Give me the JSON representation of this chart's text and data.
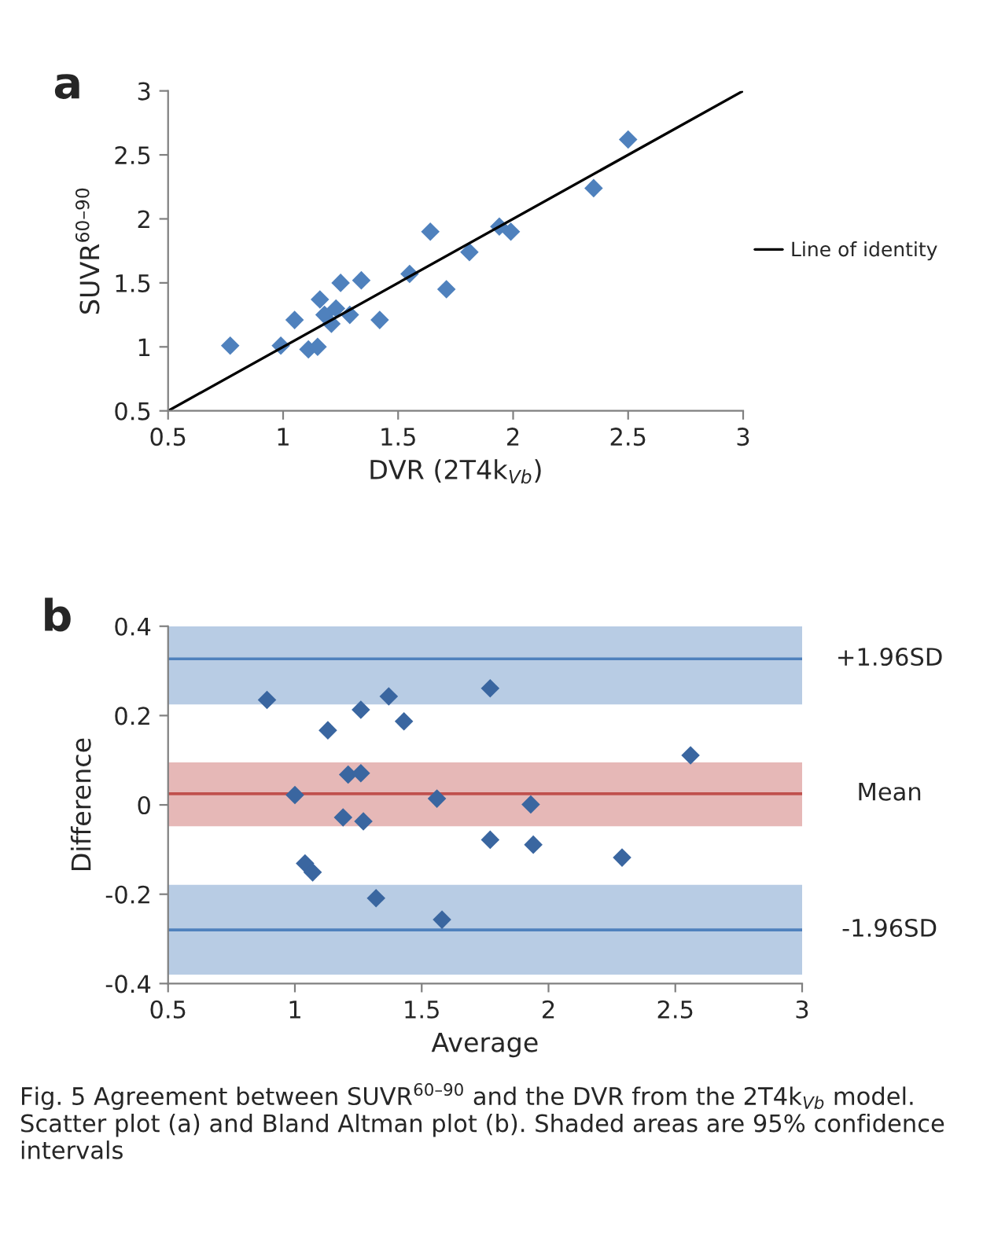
{
  "chart_data": [
    {
      "type": "scatter",
      "title": "a",
      "xlabel": "DVR (2T4k$_{Vb}$)",
      "ylabel": "SUVR$^{60–90}$",
      "xlim": [
        0.5,
        3
      ],
      "ylim": [
        0.5,
        3
      ],
      "xticks": [
        0.5,
        1,
        1.5,
        2,
        2.5,
        3
      ],
      "yticks": [
        0.5,
        1,
        1.5,
        2,
        2.5,
        3
      ],
      "grid": false,
      "legend": "right",
      "series": [
        {
          "marker": "diamond",
          "color": "#4f81bd",
          "x": [
            0.77,
            0.99,
            1.05,
            1.11,
            1.15,
            1.16,
            1.18,
            1.21,
            1.23,
            1.25,
            1.29,
            1.34,
            1.42,
            1.55,
            1.64,
            1.71,
            1.81,
            1.94,
            1.99,
            2.35,
            2.5
          ],
          "values": [
            1.01,
            1.01,
            1.21,
            0.98,
            1.0,
            1.37,
            1.25,
            1.18,
            1.3,
            1.5,
            1.25,
            1.52,
            1.21,
            1.57,
            1.9,
            1.45,
            1.74,
            1.94,
            1.9,
            2.24,
            2.62
          ]
        },
        {
          "type": "line",
          "name": "Line of identity",
          "color": "#000000",
          "x": [
            0.5,
            3
          ],
          "values": [
            0.5,
            3
          ]
        }
      ]
    },
    {
      "type": "scatter",
      "title": "b",
      "xlabel": "Average",
      "ylabel": "Difference",
      "xlim": [
        0.5,
        3
      ],
      "ylim": [
        -0.4,
        0.4
      ],
      "xticks": [
        0.5,
        1,
        1.5,
        2,
        2.5,
        3
      ],
      "yticks": [
        -0.4,
        -0.2,
        0,
        0.2,
        0.4
      ],
      "grid": false,
      "marker": "diamond",
      "series": [
        {
          "color": "#3a66a0",
          "x": [
            0.89,
            1.0,
            1.04,
            1.07,
            1.13,
            1.19,
            1.21,
            1.26,
            1.26,
            1.27,
            1.32,
            1.37,
            1.43,
            1.56,
            1.58,
            1.77,
            1.77,
            1.93,
            1.94,
            2.29,
            2.56
          ],
          "values": [
            0.235,
            0.022,
            -0.131,
            -0.151,
            0.167,
            -0.028,
            0.068,
            0.071,
            0.213,
            -0.037,
            -0.209,
            0.243,
            0.187,
            0.014,
            -0.257,
            0.261,
            -0.078,
            0.001,
            -0.089,
            -0.118,
            0.111
          ]
        }
      ],
      "bands": [
        {
          "axis": "y",
          "from": 0.225,
          "to": 0.4,
          "color": "#b8cce4"
        },
        {
          "axis": "y",
          "from": -0.048,
          "to": 0.095,
          "color": "#e6b8b7"
        },
        {
          "axis": "y",
          "from": -0.38,
          "to": -0.179,
          "color": "#b8cce4"
        }
      ],
      "ref_lines": [
        {
          "axis": "y",
          "value": 0.327,
          "label": "+1.96SD",
          "color": "#4f81bd"
        },
        {
          "axis": "y",
          "value": 0.025,
          "label": "Mean",
          "color": "#c0504d"
        },
        {
          "axis": "y",
          "value": -0.28,
          "label": "-1.96SD",
          "color": "#4f81bd"
        }
      ],
      "annotations": [
        "Fig. 5 Agreement between SUVR$^{60–90}$ and the DVR from the 2T4k$_{Vb}$ model. Scatter plot (a) and Bland Altman plot (b). Shaded areas are 95% confidence intervals"
      ]
    }
  ]
}
